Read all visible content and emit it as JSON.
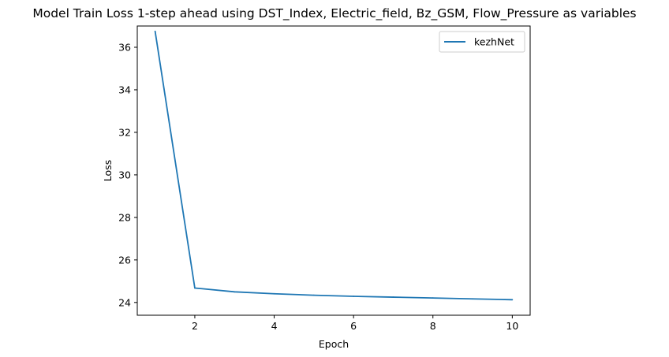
{
  "chart_data": {
    "type": "line",
    "title": "Model Train Loss 1-step ahead using DST_Index, Electric_field, Bz_GSM, Flow_Pressure as variables",
    "xlabel": "Epoch",
    "ylabel": "Loss",
    "xlim": [
      0.55,
      10.45
    ],
    "ylim": [
      23.4,
      37.0
    ],
    "xticks": [
      2,
      4,
      6,
      8,
      10
    ],
    "yticks": [
      24,
      26,
      28,
      30,
      32,
      34,
      36
    ],
    "grid": false,
    "legend_position": "top-right",
    "series": [
      {
        "name": "kezhNet",
        "color": "#1f77b4",
        "x": [
          1,
          2,
          3,
          4,
          5,
          6,
          7,
          8,
          9,
          10
        ],
        "y": [
          36.75,
          24.68,
          24.5,
          24.41,
          24.34,
          24.29,
          24.25,
          24.21,
          24.17,
          24.13
        ]
      }
    ]
  }
}
